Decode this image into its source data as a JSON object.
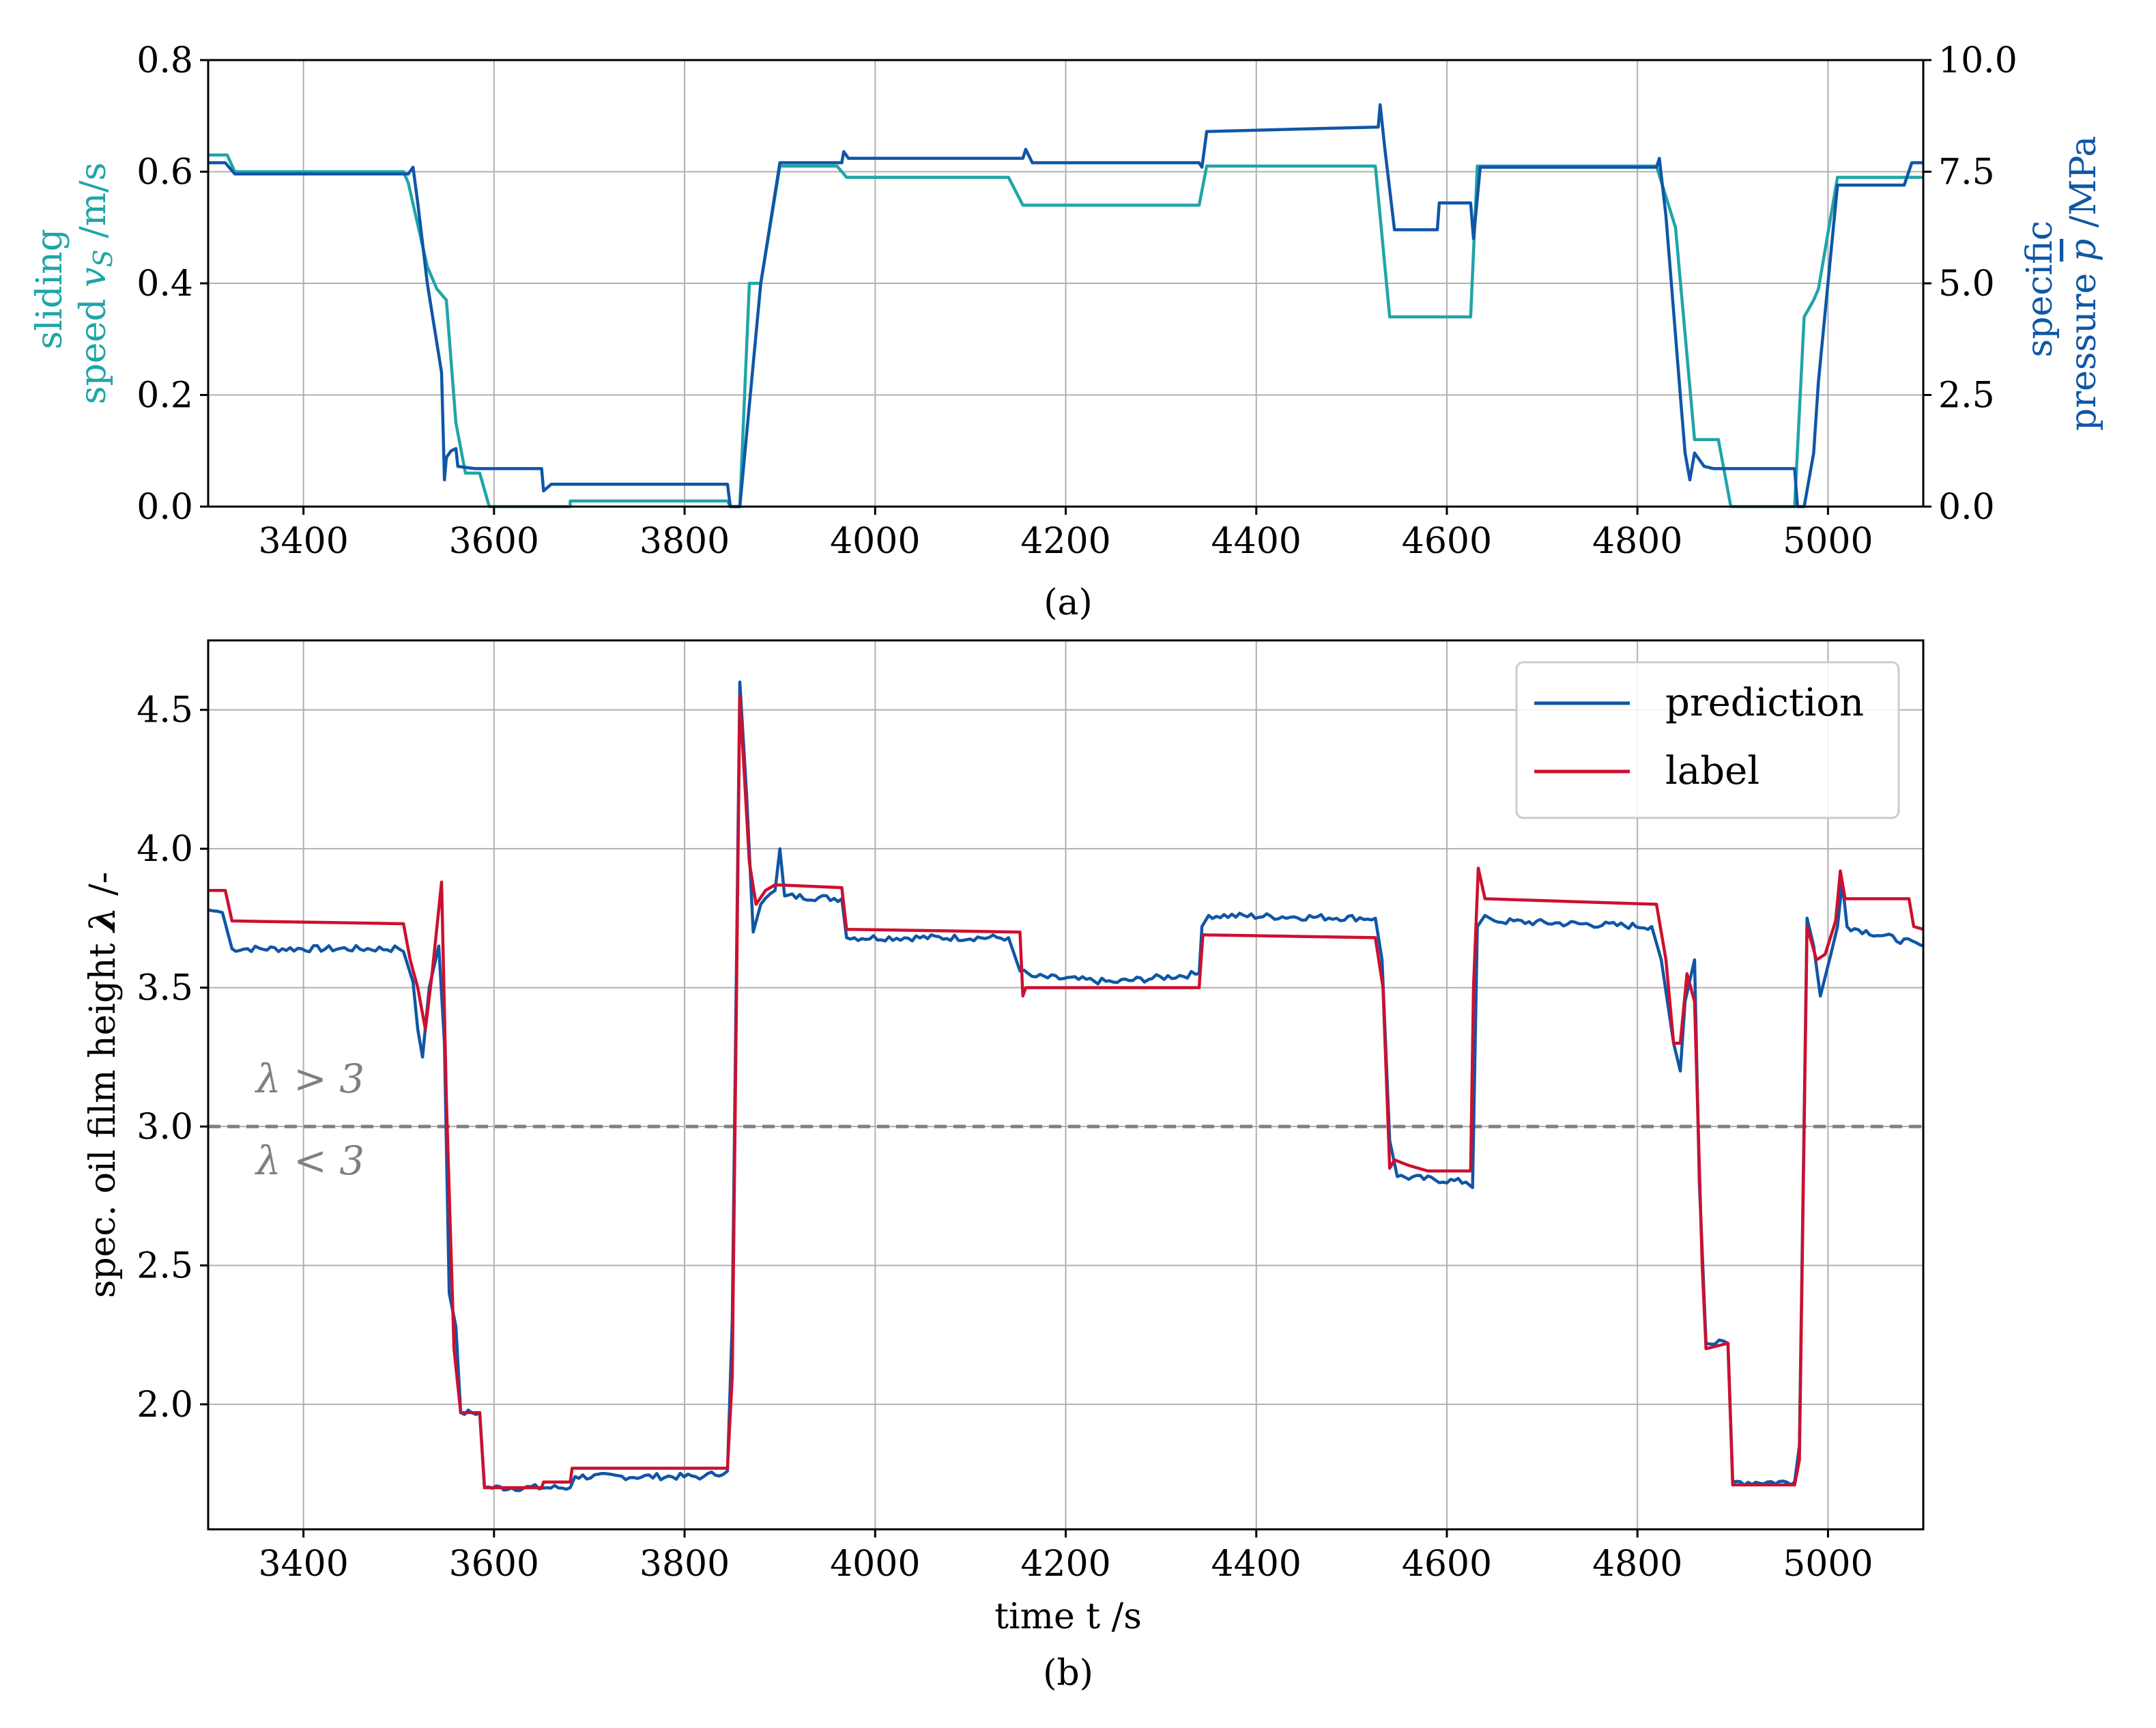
{
  "colors": {
    "teal": "#1FA5A8",
    "blue": "#0F56A6",
    "red": "#CC1030",
    "grid": "#b0b0b0",
    "threshold": "#808080"
  },
  "chart_data": [
    {
      "type": "line",
      "panel_label": "(a)",
      "xlim": [
        3300,
        5100
      ],
      "xticks": [
        "3400",
        "3600",
        "3800",
        "4000",
        "4200",
        "4400",
        "4600",
        "4800",
        "5000"
      ],
      "y_left": {
        "label_line1": "sliding",
        "label_line2_pre": "speed ",
        "label_line2_sym": "v",
        "label_line2_sub": "S",
        "label_line2_post": " /m/s",
        "ylim": [
          0,
          0.8
        ],
        "ticks": [
          "0.0",
          "0.2",
          "0.4",
          "0.6",
          "0.8"
        ]
      },
      "y_right": {
        "label_line1": "specific",
        "label_line2_pre": "pressure ",
        "label_line2_sym": "p",
        "label_line2_post": " /MPa",
        "ylim": [
          0,
          10
        ],
        "ticks": [
          "0.0",
          "2.5",
          "5.0",
          "7.5",
          "10.0"
        ]
      },
      "grid": true,
      "series": [
        {
          "axis": "left",
          "color": "teal",
          "points": [
            [
              3300,
              0.63
            ],
            [
              3320,
              0.63
            ],
            [
              3328,
              0.6
            ],
            [
              3505,
              0.6
            ],
            [
              3510,
              0.58
            ],
            [
              3530,
              0.43
            ],
            [
              3540,
              0.39
            ],
            [
              3550,
              0.37
            ],
            [
              3560,
              0.15
            ],
            [
              3570,
              0.06
            ],
            [
              3585,
              0.06
            ],
            [
              3595,
              0.0
            ],
            [
              3680,
              0.0
            ],
            [
              3680,
              0.01
            ],
            [
              3845,
              0.01
            ],
            [
              3848,
              0.0
            ],
            [
              3858,
              0.0
            ],
            [
              3868,
              0.4
            ],
            [
              3880,
              0.4
            ],
            [
              3900,
              0.61
            ],
            [
              3960,
              0.61
            ],
            [
              3970,
              0.59
            ],
            [
              4140,
              0.59
            ],
            [
              4155,
              0.54
            ],
            [
              4340,
              0.54
            ],
            [
              4348,
              0.61
            ],
            [
              4525,
              0.61
            ],
            [
              4540,
              0.34
            ],
            [
              4625,
              0.34
            ],
            [
              4632,
              0.61
            ],
            [
              4820,
              0.61
            ],
            [
              4840,
              0.5
            ],
            [
              4860,
              0.12
            ],
            [
              4885,
              0.12
            ],
            [
              4898,
              0.0
            ],
            [
              4965,
              0.0
            ],
            [
              4975,
              0.34
            ],
            [
              4985,
              0.37
            ],
            [
              4990,
              0.39
            ],
            [
              5010,
              0.59
            ],
            [
              5100,
              0.59
            ]
          ]
        },
        {
          "axis": "right",
          "color": "blue",
          "points": [
            [
              3300,
              7.7
            ],
            [
              3318,
              7.7
            ],
            [
              3328,
              7.45
            ],
            [
              3510,
              7.45
            ],
            [
              3515,
              7.6
            ],
            [
              3520,
              6.8
            ],
            [
              3530,
              5.0
            ],
            [
              3545,
              3.0
            ],
            [
              3548,
              0.6
            ],
            [
              3550,
              1.1
            ],
            [
              3555,
              1.25
            ],
            [
              3560,
              1.3
            ],
            [
              3562,
              0.9
            ],
            [
              3580,
              0.85
            ],
            [
              3650,
              0.85
            ],
            [
              3652,
              0.35
            ],
            [
              3660,
              0.5
            ],
            [
              3845,
              0.5
            ],
            [
              3848,
              0.0
            ],
            [
              3858,
              0.0
            ],
            [
              3880,
              5.0
            ],
            [
              3900,
              7.7
            ],
            [
              3965,
              7.7
            ],
            [
              3967,
              7.95
            ],
            [
              3972,
              7.8
            ],
            [
              4155,
              7.8
            ],
            [
              4158,
              8.0
            ],
            [
              4165,
              7.7
            ],
            [
              4340,
              7.7
            ],
            [
              4343,
              7.6
            ],
            [
              4348,
              8.4
            ],
            [
              4528,
              8.5
            ],
            [
              4530,
              9.0
            ],
            [
              4535,
              8.0
            ],
            [
              4545,
              6.2
            ],
            [
              4590,
              6.2
            ],
            [
              4592,
              6.8
            ],
            [
              4625,
              6.8
            ],
            [
              4628,
              6.0
            ],
            [
              4635,
              7.6
            ],
            [
              4820,
              7.6
            ],
            [
              4823,
              7.8
            ],
            [
              4830,
              6.5
            ],
            [
              4845,
              2.5
            ],
            [
              4850,
              1.2
            ],
            [
              4855,
              0.6
            ],
            [
              4860,
              1.2
            ],
            [
              4870,
              0.9
            ],
            [
              4880,
              0.85
            ],
            [
              4965,
              0.85
            ],
            [
              4968,
              0.0
            ],
            [
              4975,
              0.0
            ],
            [
              4985,
              1.2
            ],
            [
              4990,
              2.8
            ],
            [
              5010,
              7.2
            ],
            [
              5080,
              7.2
            ],
            [
              5088,
              7.7
            ],
            [
              5100,
              7.7
            ]
          ]
        }
      ]
    },
    {
      "type": "line",
      "panel_label": "(b)",
      "xlabel": "time t /s",
      "ylabel_pre": "spec. oil film height ",
      "ylabel_sym": "λ",
      "ylabel_post": " /-",
      "xlim": [
        3300,
        5100
      ],
      "ylim": [
        1.55,
        4.75
      ],
      "xticks": [
        "3400",
        "3600",
        "3800",
        "4000",
        "4200",
        "4400",
        "4600",
        "4800",
        "5000"
      ],
      "yticks": [
        "2.0",
        "2.5",
        "3.0",
        "3.5",
        "4.0",
        "4.5"
      ],
      "grid": true,
      "threshold": {
        "y": 3.0,
        "above": "λ > 3",
        "below": "λ < 3"
      },
      "legend": {
        "position": "top-right",
        "entries": [
          {
            "label": "prediction",
            "color": "blue"
          },
          {
            "label": "label",
            "color": "red"
          }
        ]
      },
      "series": [
        {
          "name": "prediction",
          "color": "blue",
          "noise": 0.012,
          "points": [
            [
              3300,
              3.78
            ],
            [
              3315,
              3.77
            ],
            [
              3325,
              3.64
            ],
            [
              3500,
              3.64
            ],
            [
              3505,
              3.63
            ],
            [
              3515,
              3.52
            ],
            [
              3520,
              3.35
            ],
            [
              3525,
              3.25
            ],
            [
              3532,
              3.5
            ],
            [
              3542,
              3.65
            ],
            [
              3548,
              3.3
            ],
            [
              3553,
              2.4
            ],
            [
              3560,
              2.28
            ],
            [
              3565,
              1.97
            ],
            [
              3585,
              1.97
            ],
            [
              3590,
              1.7
            ],
            [
              3680,
              1.7
            ],
            [
              3685,
              1.74
            ],
            [
              3820,
              1.74
            ],
            [
              3845,
              1.76
            ],
            [
              3850,
              2.3
            ],
            [
              3858,
              4.6
            ],
            [
              3865,
              4.2
            ],
            [
              3872,
              3.7
            ],
            [
              3880,
              3.8
            ],
            [
              3895,
              3.85
            ],
            [
              3900,
              4.0
            ],
            [
              3905,
              3.83
            ],
            [
              3965,
              3.82
            ],
            [
              3970,
              3.68
            ],
            [
              4140,
              3.68
            ],
            [
              4152,
              3.56
            ],
            [
              4165,
              3.54
            ],
            [
              4250,
              3.52
            ],
            [
              4340,
              3.55
            ],
            [
              4343,
              3.72
            ],
            [
              4350,
              3.76
            ],
            [
              4525,
              3.75
            ],
            [
              4532,
              3.6
            ],
            [
              4540,
              2.95
            ],
            [
              4548,
              2.82
            ],
            [
              4620,
              2.8
            ],
            [
              4627,
              2.78
            ],
            [
              4632,
              3.72
            ],
            [
              4640,
              3.76
            ],
            [
              4650,
              3.74
            ],
            [
              4815,
              3.72
            ],
            [
              4825,
              3.6
            ],
            [
              4838,
              3.3
            ],
            [
              4845,
              3.2
            ],
            [
              4850,
              3.45
            ],
            [
              4860,
              3.6
            ],
            [
              4865,
              2.8
            ],
            [
              4872,
              2.22
            ],
            [
              4895,
              2.22
            ],
            [
              4900,
              1.72
            ],
            [
              4965,
              1.72
            ],
            [
              4970,
              1.85
            ],
            [
              4978,
              3.75
            ],
            [
              4985,
              3.65
            ],
            [
              4992,
              3.47
            ],
            [
              5003,
              3.62
            ],
            [
              5010,
              3.72
            ],
            [
              5015,
              3.88
            ],
            [
              5020,
              3.72
            ],
            [
              5100,
              3.65
            ]
          ]
        },
        {
          "name": "label",
          "color": "red",
          "noise": 0,
          "points": [
            [
              3300,
              3.85
            ],
            [
              3318,
              3.85
            ],
            [
              3325,
              3.74
            ],
            [
              3505,
              3.73
            ],
            [
              3512,
              3.6
            ],
            [
              3520,
              3.5
            ],
            [
              3528,
              3.35
            ],
            [
              3535,
              3.55
            ],
            [
              3545,
              3.88
            ],
            [
              3550,
              3.1
            ],
            [
              3558,
              2.2
            ],
            [
              3565,
              1.97
            ],
            [
              3585,
              1.97
            ],
            [
              3590,
              1.7
            ],
            [
              3650,
              1.7
            ],
            [
              3652,
              1.72
            ],
            [
              3680,
              1.72
            ],
            [
              3682,
              1.77
            ],
            [
              3845,
              1.77
            ],
            [
              3850,
              2.1
            ],
            [
              3858,
              4.55
            ],
            [
              3868,
              3.95
            ],
            [
              3875,
              3.8
            ],
            [
              3885,
              3.85
            ],
            [
              3895,
              3.87
            ],
            [
              3965,
              3.86
            ],
            [
              3970,
              3.71
            ],
            [
              4152,
              3.7
            ],
            [
              4155,
              3.47
            ],
            [
              4158,
              3.5
            ],
            [
              4340,
              3.5
            ],
            [
              4344,
              3.69
            ],
            [
              4525,
              3.68
            ],
            [
              4533,
              3.5
            ],
            [
              4540,
              2.85
            ],
            [
              4545,
              2.88
            ],
            [
              4560,
              2.86
            ],
            [
              4580,
              2.84
            ],
            [
              4625,
              2.84
            ],
            [
              4628,
              3.5
            ],
            [
              4633,
              3.93
            ],
            [
              4640,
              3.82
            ],
            [
              4820,
              3.8
            ],
            [
              4830,
              3.6
            ],
            [
              4838,
              3.3
            ],
            [
              4845,
              3.3
            ],
            [
              4852,
              3.55
            ],
            [
              4860,
              3.45
            ],
            [
              4868,
              2.5
            ],
            [
              4872,
              2.2
            ],
            [
              4895,
              2.22
            ],
            [
              4900,
              1.71
            ],
            [
              4965,
              1.71
            ],
            [
              4970,
              1.8
            ],
            [
              4978,
              3.72
            ],
            [
              4988,
              3.6
            ],
            [
              4997,
              3.62
            ],
            [
              5008,
              3.74
            ],
            [
              5013,
              3.92
            ],
            [
              5018,
              3.82
            ],
            [
              5085,
              3.82
            ],
            [
              5090,
              3.72
            ],
            [
              5100,
              3.71
            ]
          ]
        }
      ]
    }
  ]
}
